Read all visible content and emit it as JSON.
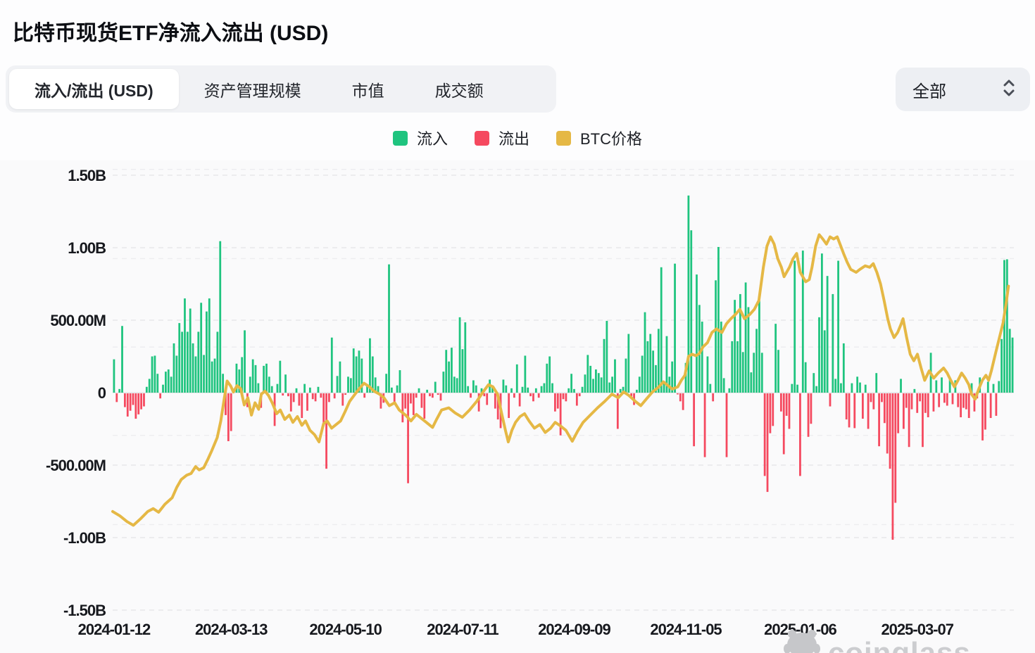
{
  "page": {
    "title": "比特币现货ETF净流入流出 (USD)"
  },
  "tabs": {
    "items": [
      {
        "label": "流入/流出 (USD)",
        "active": true
      },
      {
        "label": "资产管理规模",
        "active": false
      },
      {
        "label": "市值",
        "active": false
      },
      {
        "label": "成交额",
        "active": false
      }
    ]
  },
  "range_select": {
    "value": "全部"
  },
  "legend": {
    "items": [
      {
        "label": "流入",
        "color": "#1fc47f"
      },
      {
        "label": "流出",
        "color": "#f5495f"
      },
      {
        "label": "BTC价格",
        "color": "#e5b845"
      }
    ]
  },
  "watermark": {
    "text": "coinglass"
  },
  "chart_data": {
    "type": "bar+line",
    "title": "比特币现货ETF净流入流出 (USD)",
    "unit": "USD (millions on left axis; B = billions)",
    "grid": "horizontal-dashed",
    "legend_position": "top-center",
    "colors": {
      "inflow": "#1fc47f",
      "outflow": "#f5495f",
      "price_line": "#e5b845",
      "grid": "#e7e8ea",
      "grid_faint": "#ededf0",
      "zero_line": "#e1e2e5",
      "axis_text": "#17191e"
    },
    "y_axis": {
      "ticks": [
        {
          "label": "1.50B",
          "value": 1500
        },
        {
          "label": "1.00B",
          "value": 1000
        },
        {
          "label": "500.00M",
          "value": 500
        },
        {
          "label": "0",
          "value": 0
        },
        {
          "label": "-500.00M",
          "value": -500
        },
        {
          "label": "-1.00B",
          "value": -1000
        },
        {
          "label": "-1.50B",
          "value": -1500
        }
      ],
      "range": [
        -1500,
        1500
      ]
    },
    "secondary_grid_values": [
      1540,
      925,
      315,
      -295,
      -910
    ],
    "x_axis": {
      "ticks": [
        {
          "label": "2024-01-12",
          "index": 0
        },
        {
          "label": "2024-03-13",
          "index": 43
        },
        {
          "label": "2024-05-10",
          "index": 85
        },
        {
          "label": "2024-07-11",
          "index": 128
        },
        {
          "label": "2024-09-09",
          "index": 169
        },
        {
          "label": "2024-11-05",
          "index": 210
        },
        {
          "label": "2025-01-06",
          "index": 252
        },
        {
          "label": "2025-03-07",
          "index": 295
        }
      ]
    },
    "series": [
      {
        "name": "流入/流出",
        "type": "bar",
        "unit": "M USD (positive = 流入 green, negative = 流出 red)",
        "values": [
          230,
          -60,
          25,
          460,
          -95,
          -160,
          -120,
          -80,
          -175,
          -145,
          -110,
          -90,
          40,
          95,
          250,
          255,
          130,
          -35,
          55,
          145,
          160,
          110,
          340,
          255,
          480,
          420,
          650,
          420,
          580,
          340,
          250,
          420,
          620,
          260,
          560,
          650,
          215,
          235,
          420,
          1045,
          130,
          -150,
          -330,
          -260,
          15,
          200,
          160,
          245,
          430,
          -95,
          110,
          230,
          190,
          65,
          -100,
          185,
          200,
          110,
          45,
          -225,
          60,
          220,
          -15,
          125,
          -20,
          -125,
          -60,
          30,
          -85,
          -170,
          60,
          -120,
          35,
          -40,
          -55,
          40,
          -30,
          -225,
          -520,
          -60,
          380,
          -35,
          115,
          215,
          -85,
          -10,
          110,
          100,
          305,
          250,
          290,
          235,
          -30,
          45,
          375,
          250,
          105,
          45,
          -105,
          -65,
          130,
          885,
          35,
          -65,
          50,
          155,
          -200,
          -105,
          -620,
          -70,
          -150,
          -30,
          30,
          -100,
          -175,
          20,
          -20,
          -30,
          75,
          -10,
          -50,
          145,
          295,
          215,
          310,
          110,
          100,
          520,
          300,
          485,
          45,
          -30,
          85,
          50,
          -125,
          30,
          -20,
          -80,
          90,
          50,
          -105,
          -180,
          -240,
          90,
          50,
          -170,
          30,
          -30,
          195,
          -90,
          40,
          255,
          35,
          -20,
          -55,
          30,
          -30,
          45,
          65,
          200,
          250,
          65,
          -125,
          -105,
          -290,
          -40,
          -55,
          30,
          130,
          25,
          -85,
          -20,
          40,
          125,
          260,
          185,
          95,
          160,
          135,
          105,
          370,
          495,
          70,
          110,
          230,
          -245,
          25,
          40,
          235,
          405,
          -20,
          -80,
          20,
          110,
          255,
          555,
          355,
          405,
          290,
          190,
          440,
          865,
          80,
          390,
          110,
          215,
          890,
          -5,
          -55,
          -115,
          205,
          1360,
          1120,
          -365,
          815,
          605,
          490,
          -440,
          250,
          60,
          -55,
          775,
          1005,
          490,
          100,
          -440,
          30,
          355,
          640,
          355,
          680,
          280,
          760,
          590,
          140,
          275,
          440,
          635,
          275,
          -570,
          -680,
          -275,
          -225,
          475,
          295,
          -125,
          -420,
          -155,
          -245,
          60,
          910,
          55,
          -570,
          980,
          210,
          -300,
          -210,
          135,
          45,
          520,
          960,
          430,
          805,
          -90,
          680,
          95,
          910,
          65,
          340,
          -180,
          -235,
          65,
          -240,
          110,
          70,
          -175,
          55,
          -245,
          -60,
          -110,
          135,
          -365,
          -60,
          -205,
          -415,
          -520,
          -1010,
          -755,
          -275,
          95,
          -245,
          -100,
          -370,
          -110,
          25,
          -135,
          -55,
          -370,
          -135,
          -165,
          275,
          -125,
          85,
          -95,
          105,
          -65,
          -85,
          90,
          -75,
          85,
          -95,
          -165,
          -100,
          -110,
          -170,
          65,
          -125,
          -35,
          105,
          -325,
          -250,
          75,
          -170,
          60,
          -155,
          80,
          370,
          915,
          920,
          440,
          380
        ]
      },
      {
        "name": "BTC价格",
        "type": "line",
        "unit": "plotted against left axis equivalent (M); no price axis shown",
        "points": [
          [
            0.0,
            -820
          ],
          [
            0.008,
            -850
          ],
          [
            0.016,
            -890
          ],
          [
            0.023,
            -915
          ],
          [
            0.031,
            -870
          ],
          [
            0.039,
            -820
          ],
          [
            0.045,
            -800
          ],
          [
            0.051,
            -825
          ],
          [
            0.058,
            -770
          ],
          [
            0.066,
            -725
          ],
          [
            0.071,
            -655
          ],
          [
            0.076,
            -600
          ],
          [
            0.082,
            -570
          ],
          [
            0.087,
            -558
          ],
          [
            0.092,
            -510
          ],
          [
            0.096,
            -533
          ],
          [
            0.101,
            -518
          ],
          [
            0.106,
            -455
          ],
          [
            0.11,
            -400
          ],
          [
            0.116,
            -310
          ],
          [
            0.12,
            -195
          ],
          [
            0.124,
            -35
          ],
          [
            0.127,
            80
          ],
          [
            0.131,
            45
          ],
          [
            0.134,
            5
          ],
          [
            0.138,
            48
          ],
          [
            0.142,
            28
          ],
          [
            0.146,
            -85
          ],
          [
            0.15,
            -35
          ],
          [
            0.154,
            -155
          ],
          [
            0.158,
            -70
          ],
          [
            0.162,
            -115
          ],
          [
            0.165,
            -10
          ],
          [
            0.169,
            10
          ],
          [
            0.173,
            -20
          ],
          [
            0.177,
            -70
          ],
          [
            0.182,
            -145
          ],
          [
            0.186,
            -120
          ],
          [
            0.191,
            -185
          ],
          [
            0.196,
            -155
          ],
          [
            0.2,
            -205
          ],
          [
            0.205,
            -165
          ],
          [
            0.21,
            -225
          ],
          [
            0.214,
            -195
          ],
          [
            0.219,
            -260
          ],
          [
            0.224,
            -290
          ],
          [
            0.229,
            -340
          ],
          [
            0.234,
            -215
          ],
          [
            0.238,
            -195
          ],
          [
            0.243,
            -245
          ],
          [
            0.248,
            -220
          ],
          [
            0.253,
            -195
          ],
          [
            0.258,
            -130
          ],
          [
            0.263,
            -60
          ],
          [
            0.269,
            -10
          ],
          [
            0.274,
            30
          ],
          [
            0.279,
            65
          ],
          [
            0.285,
            40
          ],
          [
            0.29,
            10
          ],
          [
            0.296,
            -10
          ],
          [
            0.301,
            -35
          ],
          [
            0.307,
            -90
          ],
          [
            0.313,
            -70
          ],
          [
            0.318,
            -120
          ],
          [
            0.325,
            -155
          ],
          [
            0.331,
            -195
          ],
          [
            0.337,
            -150
          ],
          [
            0.345,
            -190
          ],
          [
            0.355,
            -240
          ],
          [
            0.359,
            -190
          ],
          [
            0.365,
            -120
          ],
          [
            0.373,
            -105
          ],
          [
            0.38,
            -140
          ],
          [
            0.388,
            -170
          ],
          [
            0.396,
            -120
          ],
          [
            0.404,
            -60
          ],
          [
            0.411,
            5
          ],
          [
            0.417,
            55
          ],
          [
            0.422,
            40
          ],
          [
            0.427,
            -10
          ],
          [
            0.432,
            -155
          ],
          [
            0.436,
            -265
          ],
          [
            0.439,
            -340
          ],
          [
            0.443,
            -260
          ],
          [
            0.447,
            -205
          ],
          [
            0.452,
            -165
          ],
          [
            0.457,
            -145
          ],
          [
            0.462,
            -195
          ],
          [
            0.468,
            -245
          ],
          [
            0.474,
            -220
          ],
          [
            0.48,
            -275
          ],
          [
            0.486,
            -245
          ],
          [
            0.491,
            -205
          ],
          [
            0.497,
            -230
          ],
          [
            0.503,
            -260
          ],
          [
            0.51,
            -335
          ],
          [
            0.516,
            -265
          ],
          [
            0.522,
            -205
          ],
          [
            0.53,
            -155
          ],
          [
            0.538,
            -105
          ],
          [
            0.546,
            -60
          ],
          [
            0.554,
            -10
          ],
          [
            0.561,
            -35
          ],
          [
            0.567,
            5
          ],
          [
            0.573,
            -20
          ],
          [
            0.58,
            -60
          ],
          [
            0.586,
            -90
          ],
          [
            0.592,
            -45
          ],
          [
            0.599,
            5
          ],
          [
            0.606,
            40
          ],
          [
            0.611,
            75
          ],
          [
            0.616,
            50
          ],
          [
            0.621,
            25
          ],
          [
            0.627,
            40
          ],
          [
            0.631,
            85
          ],
          [
            0.635,
            120
          ],
          [
            0.639,
            250
          ],
          [
            0.643,
            265
          ],
          [
            0.647,
            255
          ],
          [
            0.651,
            270
          ],
          [
            0.655,
            315
          ],
          [
            0.66,
            345
          ],
          [
            0.665,
            415
          ],
          [
            0.67,
            440
          ],
          [
            0.676,
            415
          ],
          [
            0.681,
            475
          ],
          [
            0.686,
            510
          ],
          [
            0.691,
            540
          ],
          [
            0.696,
            575
          ],
          [
            0.701,
            510
          ],
          [
            0.707,
            540
          ],
          [
            0.712,
            575
          ],
          [
            0.717,
            635
          ],
          [
            0.722,
            865
          ],
          [
            0.726,
            1010
          ],
          [
            0.73,
            1075
          ],
          [
            0.734,
            1025
          ],
          [
            0.738,
            925
          ],
          [
            0.742,
            865
          ],
          [
            0.745,
            800
          ],
          [
            0.751,
            865
          ],
          [
            0.755,
            925
          ],
          [
            0.759,
            960
          ],
          [
            0.763,
            830
          ],
          [
            0.769,
            765
          ],
          [
            0.773,
            780
          ],
          [
            0.776,
            865
          ],
          [
            0.78,
            1010
          ],
          [
            0.784,
            1090
          ],
          [
            0.788,
            1060
          ],
          [
            0.792,
            1025
          ],
          [
            0.796,
            1075
          ],
          [
            0.8,
            1060
          ],
          [
            0.804,
            1075
          ],
          [
            0.808,
            1010
          ],
          [
            0.811,
            960
          ],
          [
            0.815,
            900
          ],
          [
            0.819,
            850
          ],
          [
            0.825,
            830
          ],
          [
            0.829,
            850
          ],
          [
            0.835,
            875
          ],
          [
            0.84,
            865
          ],
          [
            0.844,
            890
          ],
          [
            0.848,
            830
          ],
          [
            0.852,
            750
          ],
          [
            0.856,
            635
          ],
          [
            0.86,
            510
          ],
          [
            0.863,
            440
          ],
          [
            0.867,
            380
          ],
          [
            0.871,
            415
          ],
          [
            0.875,
            475
          ],
          [
            0.877,
            510
          ],
          [
            0.881,
            380
          ],
          [
            0.885,
            265
          ],
          [
            0.889,
            220
          ],
          [
            0.893,
            265
          ],
          [
            0.897,
            170
          ],
          [
            0.901,
            85
          ],
          [
            0.906,
            150
          ],
          [
            0.911,
            100
          ],
          [
            0.916,
            135
          ],
          [
            0.922,
            170
          ],
          [
            0.926,
            135
          ],
          [
            0.93,
            85
          ],
          [
            0.934,
            40
          ],
          [
            0.938,
            85
          ],
          [
            0.942,
            135
          ],
          [
            0.946,
            100
          ],
          [
            0.95,
            55
          ],
          [
            0.953,
            -10
          ],
          [
            0.957,
            -45
          ],
          [
            0.961,
            25
          ],
          [
            0.965,
            85
          ],
          [
            0.969,
            120
          ],
          [
            0.972,
            85
          ],
          [
            0.975,
            150
          ],
          [
            0.98,
            280
          ],
          [
            0.984,
            380
          ],
          [
            0.988,
            480
          ],
          [
            0.991,
            600
          ],
          [
            0.994,
            735
          ]
        ]
      }
    ]
  }
}
